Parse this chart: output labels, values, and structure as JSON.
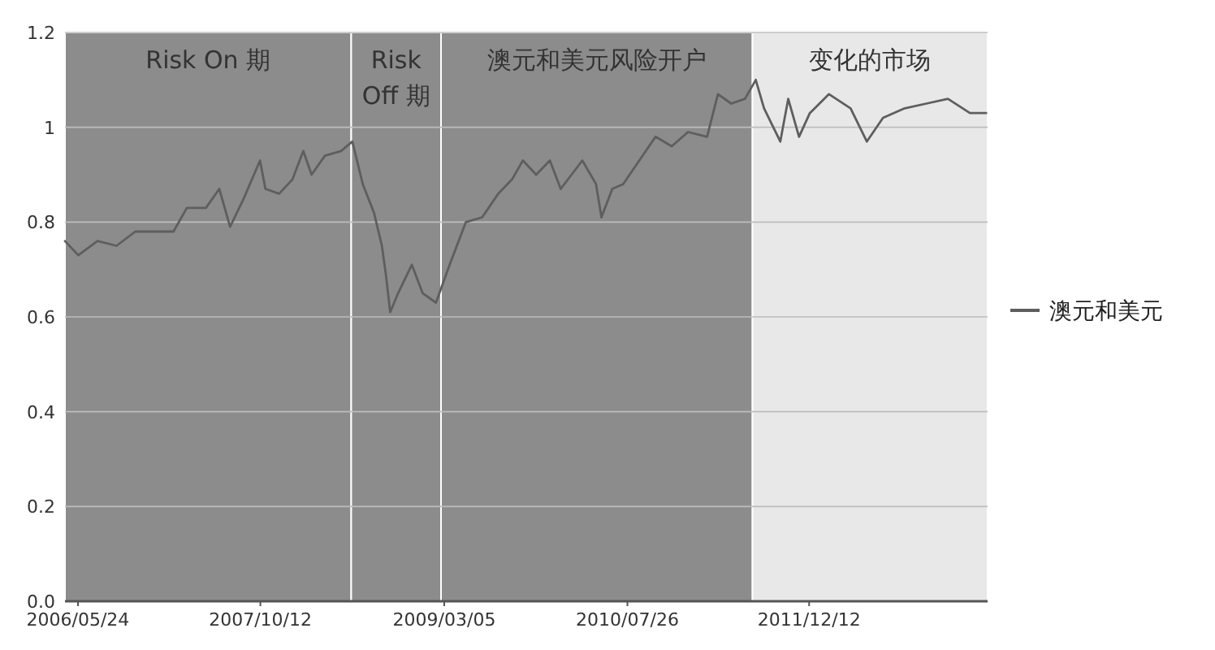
{
  "chart_data": {
    "type": "line",
    "x": [
      "2006-04-18",
      "2006-05-25",
      "2006-07-17",
      "2006-09-08",
      "2006-10-30",
      "2006-12-29",
      "2007-02-13",
      "2007-03-22",
      "2007-05-14",
      "2007-06-20",
      "2007-07-20",
      "2007-08-27",
      "2007-10-11",
      "2007-10-26",
      "2007-12-03",
      "2008-01-09",
      "2008-02-08",
      "2008-03-02",
      "2008-04-08",
      "2008-05-23",
      "2008-06-23",
      "2008-07-22",
      "2008-08-22",
      "2008-09-13",
      "2008-09-24",
      "2008-10-06",
      "2008-10-28",
      "2008-12-05",
      "2009-01-04",
      "2009-02-10",
      "2009-03-20",
      "2009-05-04",
      "2009-06-18",
      "2009-08-02",
      "2009-09-09",
      "2009-10-09",
      "2009-11-15",
      "2009-12-23",
      "2010-01-22",
      "2010-03-23",
      "2010-04-30",
      "2010-05-15",
      "2010-06-14",
      "2010-07-14",
      "2010-08-28",
      "2010-10-12",
      "2010-11-26",
      "2011-01-10",
      "2011-03-04",
      "2011-04-03",
      "2011-05-10",
      "2011-06-17",
      "2011-07-17",
      "2011-08-09",
      "2011-09-23",
      "2011-10-15",
      "2011-11-14",
      "2011-12-14",
      "2012-02-05",
      "2012-04-05",
      "2012-05-20",
      "2012-07-04",
      "2012-09-02",
      "2012-11-01",
      "2012-12-31",
      "2013-03-02",
      "2013-04-16"
    ],
    "series": [
      {
        "name": "澳元和美元",
        "color": "#5e5e5e",
        "values": [
          0.76,
          0.73,
          0.76,
          0.75,
          0.78,
          0.78,
          0.78,
          0.83,
          0.83,
          0.87,
          0.79,
          0.85,
          0.93,
          0.87,
          0.86,
          0.89,
          0.95,
          0.9,
          0.94,
          0.95,
          0.97,
          0.88,
          0.82,
          0.75,
          0.69,
          0.61,
          0.65,
          0.71,
          0.65,
          0.63,
          0.71,
          0.8,
          0.81,
          0.86,
          0.89,
          0.93,
          0.9,
          0.93,
          0.87,
          0.93,
          0.88,
          0.81,
          0.87,
          0.88,
          0.93,
          0.98,
          0.96,
          0.99,
          0.98,
          1.07,
          1.05,
          1.06,
          1.1,
          1.04,
          0.97,
          1.06,
          0.98,
          1.03,
          1.07,
          1.04,
          0.97,
          1.02,
          1.04,
          1.05,
          1.06,
          1.03,
          1.03
        ]
      }
    ],
    "xlim": [
      "2006-04-18",
      "2013-04-20"
    ],
    "xticks": [
      {
        "value": "2006-05-24",
        "label": "2006/05/24"
      },
      {
        "value": "2007-10-12",
        "label": "2007/10/12"
      },
      {
        "value": "2009-03-05",
        "label": "2009/03/05"
      },
      {
        "value": "2010-07-26",
        "label": "2010/07/26"
      },
      {
        "value": "2011-12-12",
        "label": "2011/12/12"
      }
    ],
    "ylim": [
      0,
      1.2
    ],
    "yticks": [
      {
        "value": 0,
        "label": "0.0"
      },
      0.2,
      0.4,
      0.6,
      0.8,
      1,
      1.2
    ],
    "bands": [
      {
        "axis": "x",
        "from": "2006-04-18",
        "to": "2008-06-20",
        "label": "Risk On 期",
        "color": "#8c8c8c"
      },
      {
        "axis": "x",
        "from": "2008-06-20",
        "to": "2009-02-24",
        "label": "Risk Off 期",
        "color": "#8c8c8c"
      },
      {
        "axis": "x",
        "from": "2009-02-24",
        "to": "2011-07-08",
        "label": "澳元和美元风险开户",
        "color": "#8c8c8c"
      },
      {
        "axis": "x",
        "from": "2011-07-08",
        "to": "2013-04-20",
        "label": "变化的市场",
        "color": "#e8e8e8"
      }
    ],
    "grid": "y",
    "legend": "right"
  }
}
